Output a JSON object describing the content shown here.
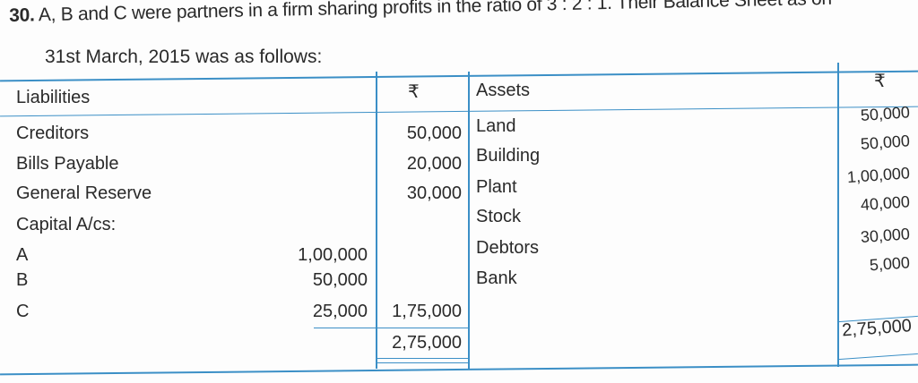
{
  "question": {
    "number": "30.",
    "text": "A, B and C were partners in a firm sharing profits in the ratio of 3 : 2 : 1. Their Balance Sheet as on",
    "line2": "31st March, 2015 was as follows:"
  },
  "table": {
    "headers": {
      "liabilities": "Liabilities",
      "amount1": "₹",
      "assets": "Assets",
      "amount2": "₹"
    },
    "liabilities": [
      {
        "label": "Creditors",
        "amount": "50,000"
      },
      {
        "label": "Bills Payable",
        "amount": "20,000"
      },
      {
        "label": "General Reserve",
        "amount": "30,000"
      },
      {
        "label": "Capital A/cs:",
        "amount": ""
      },
      {
        "label": "A",
        "sub": "1,00,000"
      },
      {
        "label": "B",
        "sub": "50,000"
      },
      {
        "label": "C",
        "sub": "25,000",
        "amount": "1,75,000"
      }
    ],
    "assets": [
      {
        "label": "Land",
        "amount": "50,000"
      },
      {
        "label": "Building",
        "amount": "50,000"
      },
      {
        "label": "Plant",
        "amount": "1,00,000"
      },
      {
        "label": "Stock",
        "amount": "40,000"
      },
      {
        "label": "Debtors",
        "amount": "30,000"
      },
      {
        "label": "Bank",
        "amount": "5,000"
      }
    ],
    "total_liabilities": "2,75,000",
    "total_assets": "2,75,000"
  },
  "colors": {
    "rule": "#3b8fc6"
  }
}
